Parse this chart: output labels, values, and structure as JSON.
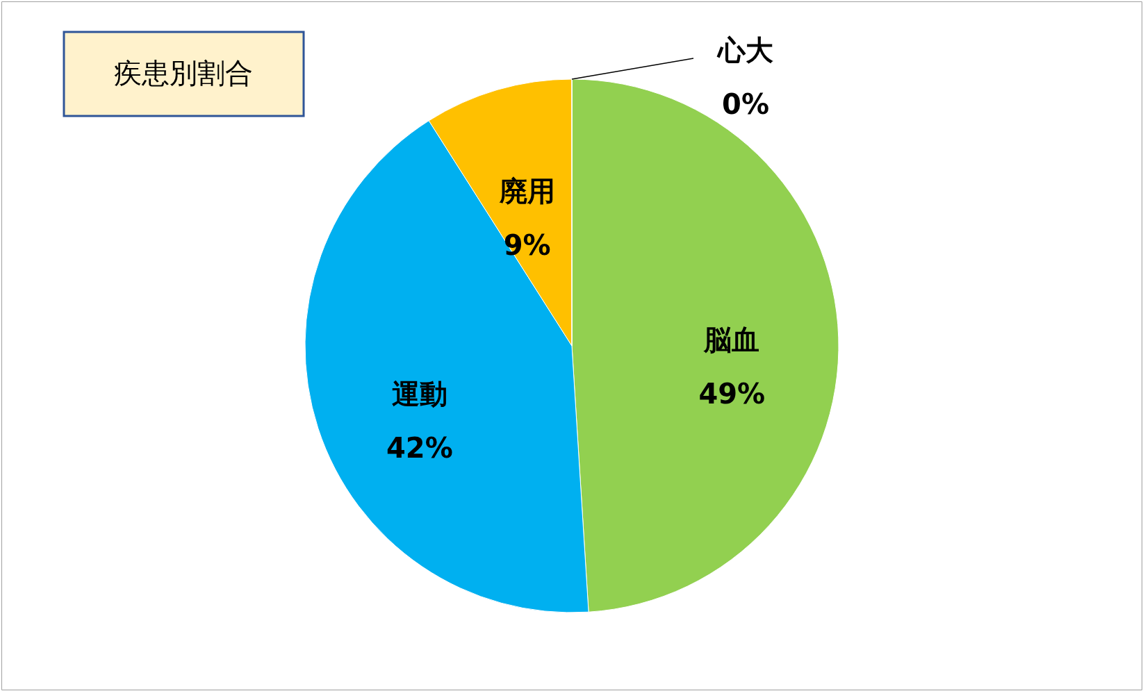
{
  "chart_data": {
    "type": "pie",
    "title": "疾患別割合",
    "categories": [
      "脳血",
      "運動",
      "廃用",
      "心大"
    ],
    "values": [
      49,
      42,
      9,
      0
    ],
    "value_labels": [
      "49%",
      "42%",
      "9%",
      "0%"
    ],
    "colors": [
      "#92d050",
      "#00b0f0",
      "#ffc000",
      "#ffff00"
    ]
  }
}
